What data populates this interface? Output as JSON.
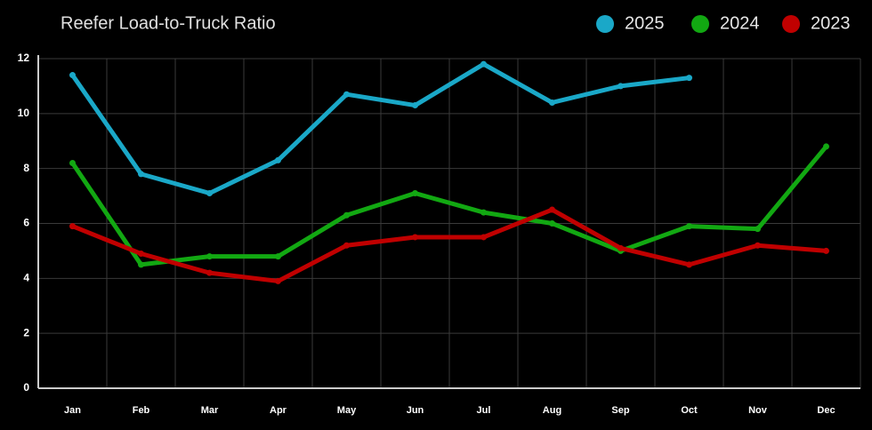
{
  "chart_data": {
    "type": "line",
    "title": "Reefer Load-to-Truck Ratio",
    "categories": [
      "Jan",
      "Feb",
      "Mar",
      "Apr",
      "May",
      "Jun",
      "Jul",
      "Aug",
      "Sep",
      "Oct",
      "Nov",
      "Dec"
    ],
    "series": [
      {
        "name": "2025",
        "color": "#1aa8c8",
        "values": [
          11.4,
          7.8,
          7.1,
          8.3,
          10.7,
          10.3,
          11.8,
          10.4,
          11.0,
          11.3,
          null,
          null
        ]
      },
      {
        "name": "2024",
        "color": "#12a812",
        "values": [
          8.2,
          4.5,
          4.8,
          4.8,
          6.3,
          7.1,
          6.4,
          6.0,
          5.0,
          5.9,
          5.8,
          8.8
        ]
      },
      {
        "name": "2023",
        "color": "#c00000",
        "values": [
          5.9,
          4.9,
          4.2,
          3.9,
          5.2,
          5.5,
          5.5,
          6.5,
          5.1,
          4.5,
          5.2,
          5.0
        ]
      }
    ],
    "ylim": [
      0,
      12
    ],
    "yticks": [
      0,
      2,
      4,
      6,
      8,
      10,
      12
    ],
    "grid": true,
    "legend": "top-right"
  }
}
